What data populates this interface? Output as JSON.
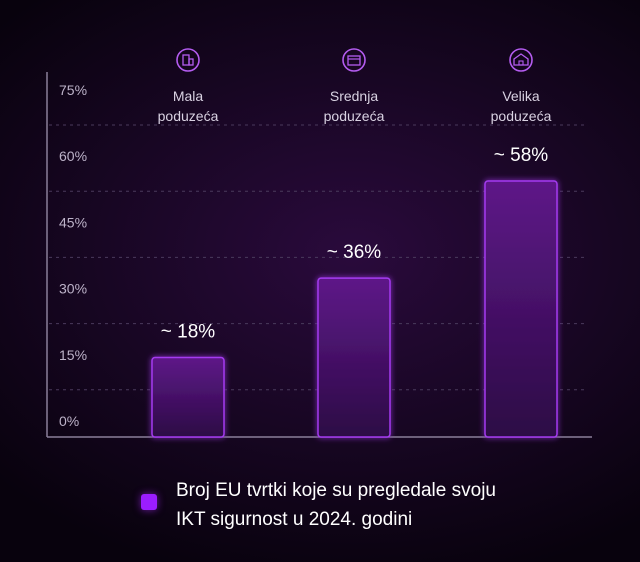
{
  "chart_data": {
    "type": "bar",
    "categories": [
      "Mala\npoduzeća",
      "Srednja\npoduzeća",
      "Velika\npoduzeća"
    ],
    "category_icons": [
      "small-building-icon",
      "medium-building-icon",
      "large-building-icon"
    ],
    "values": [
      18,
      36,
      58
    ],
    "value_labels": [
      "~ 18%",
      "~ 36%",
      "~ 58%"
    ],
    "yticks": [
      "0%",
      "15%",
      "30%",
      "45%",
      "60%",
      "75%"
    ],
    "ytick_values": [
      0,
      15,
      30,
      45,
      60,
      75
    ],
    "ylim": [
      0,
      75
    ],
    "grid": true,
    "legend": {
      "position": "bottom",
      "label": "Broj EU tvrtki koje su pregledale svoju\nIKT sigurnost u 2024. godini"
    },
    "colors": {
      "bar_fill_top": "#5e1788",
      "bar_fill_bottom": "#2c0b45",
      "bar_stroke": "#a43bf0",
      "legend_swatch": "#9b1dff",
      "axis": "#8a7f99",
      "grid": "#4a3a5c",
      "tick_text": "#bdb3c9",
      "category_text": "#d9d2e2",
      "icon": "#b45cf0"
    }
  }
}
